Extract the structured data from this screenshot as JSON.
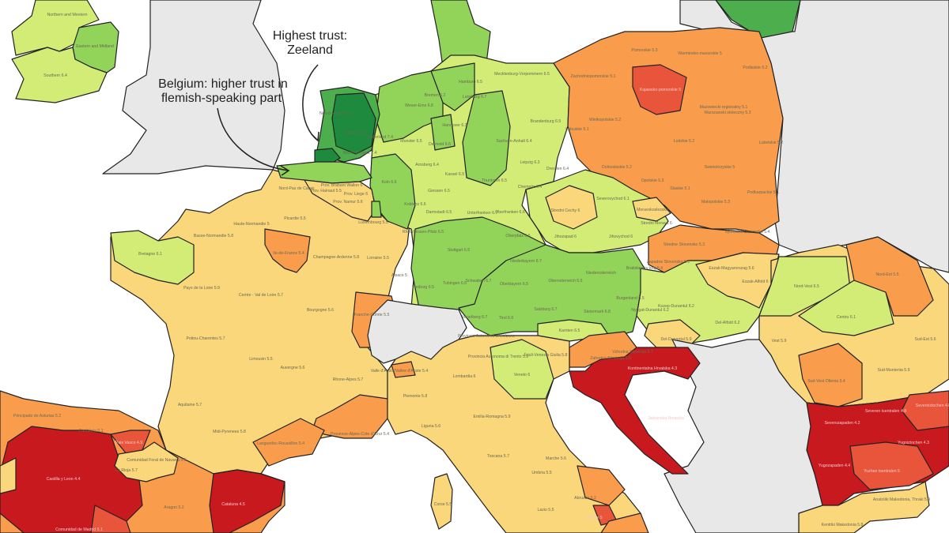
{
  "annotations": {
    "highest_trust_line1": "Highest trust:",
    "highest_trust_line2": "Zeeland",
    "belgium_line1": "Belgium: higher trust in",
    "belgium_line2": "flemish-speaking part"
  },
  "colors": {
    "sea": "#ffffff",
    "no_data": "#e8e8e8",
    "trust_highest": "#1e8a3e",
    "trust_very_high": "#4cae4c",
    "trust_high": "#92d35a",
    "trust_above_avg": "#d3ec76",
    "trust_mid": "#fad77a",
    "trust_low": "#f99d4c",
    "trust_very_low": "#e8553a",
    "trust_lowest": "#c8191e",
    "border": "#222222"
  },
  "labels": {
    "ie_nw": "Northern and Western",
    "ie_em": "Eastern and Midland",
    "ie_s": "Southern 6.4",
    "nl_nh": "Noord-Holland 7.1",
    "nl_ut": "Utrecht 7.3",
    "nl_ge": "Gelderland 7.4",
    "nl_nb": "Noord-Brabant 7.4",
    "de_mv": "Mecklenburg-Vorpommern 6.5",
    "de_hh": "Hamburg 6.5",
    "de_hb": "Bremen 6.2",
    "de_lu": "Luneburg 6.7",
    "de_we": "Weser-Ems 6.8",
    "de_ha": "Hannover 6.3",
    "de_br": "Brandenburg 6.5",
    "de_mu": "Munster 6.5",
    "de_de": "Detmold 6.6",
    "de_sa": "Sachsen-Anhalt 6.4",
    "de_le": "Leipzig 6.3",
    "de_dr": "Dresden 6.4",
    "de_ar": "Arnsberg 6.4",
    "de_ka": "Kassel 6.5",
    "de_ko": "Koln 6.6",
    "de_th": "Thuringen 6.5",
    "de_ch": "Chemnitz 6.4",
    "de_gi": "Giessen 6.5",
    "de_kb": "Koblenz 6.6",
    "de_da": "Darmstadt 6.5",
    "de_uf": "Unterfranken 6.7",
    "de_of": "Oberfranken 6.6",
    "de_op": "Oberpfalz 6.6",
    "de_rp": "Rheinhessen-Pfalz 6.5",
    "de_st": "Stuttgart 6.5",
    "de_nb": "Niederbayern 6.7",
    "de_tu": "Tubingen 6.5",
    "de_sw": "Schwaben 6.7",
    "de_ob": "Oberbayern 6.5",
    "de_fr": "Freiburg 6.5",
    "at_oo": "Oberosterreich 6.5",
    "at_no": "Niederosterreich",
    "at_sb": "Salzburg 6.7",
    "at_ti": "Tirol 6.6",
    "at_st": "Steiermark 6.8",
    "at_ka": "Karnten 6.5",
    "at_vb": "Vorarlberg 6.7",
    "at_bu": "Burgenland 6.5",
    "pl_po": "Pomorskie 5.3",
    "pl_wm": "Warminsko-mazurskie 5",
    "pl_zp": "Zachodniopomorskie 5.1",
    "pl_pd": "Podlaskie 5.2",
    "pl_kp": "Kujawsko-pomorskie 5",
    "pl_mr": "Mazowiecki regionalny 5.1",
    "pl_ws": "Warszawski stoleczny 5.3",
    "pl_wp": "Wielkopolskie 5.2",
    "pl_lb": "Lubuskie 5.1",
    "pl_ld": "Lodzkie 5.2",
    "pl_ll": "Lubelskie 5.2",
    "pl_ds": "Dolnoslaskie 5.2",
    "pl_sk": "Swietokrzyskie 5",
    "pl_op": "Opolskie 5.3",
    "pl_sl": "Slaskie 5.1",
    "pl_pk": "Podkarpackie 5.1",
    "pl_mp": "Malopolskie 5.3",
    "cz_sv": "Severovychod 6.1",
    "cz_sc": "Stredni Cechy 6",
    "cz_ms": "Moravskoslezsko",
    "cz_sm": "Stredni Morava 6",
    "cz_jz": "Jihozapad 6",
    "cz_jv": "Jihovychod 6",
    "sk_vs": "Vychodne Slovensko 5.4",
    "sk_ss": "Stredne Slovensko 5.3",
    "sk_zs": "Zapadne Slovensko 5.2",
    "sk_bk": "Bratislavsky kraj 5.4",
    "hu_em": "Eszak-Magyarorszag 5.6",
    "hu_ea": "Eszak-Alfold 6",
    "hu_kd": "Kozep-Dunantul 6.2",
    "hu_nd": "Nyugat-Dunantul 6.2",
    "hu_da": "Del-Alfold 6.2",
    "hu_dd": "Del-Dunantul 5.9",
    "ro_nv": "Nord-Vest 6.5",
    "ro_ne": "Nord-Est 5.5",
    "ro_ce": "Centru 6.1",
    "ro_ve": "Vest 5.9",
    "ro_se": "Sud-Est 5.6",
    "ro_sm": "Sud-Muntenia 5.9",
    "ro_so": "Sud-Vest Oltenia 5.4",
    "bg_sz": "Severozapaden 4.2",
    "bg_st": "Severen tsentralen 4.8",
    "bg_si": "Severoiztochen 4.8",
    "bg_yz": "Yugozapaden 4.4",
    "bg_yi": "Yugoiztochen 4.3",
    "bg_yt": "Yuzhen tsentralen 5",
    "gr_am": "Anatoliki Makedonia, Thraki 5.9",
    "gr_km": "Kentriki Makedonia 5.8",
    "hr_kh": "Kontinentalna Hrvatska 4.3",
    "hr_jh": "Jadranska Hrvatska",
    "si_vz": "Vzhodna Slovenija 5.7",
    "si_za": "Zahodna Slovenija 5.8",
    "it_bz": "Provincia Autonoma di Bolzano",
    "it_tn": "Provincia Autonoma di Trento 5.9",
    "it_fv": "Friuli-Venezia Giulia 5.8",
    "it_va": "Valle d'Aosta/Vallee d'Aoste 5.4",
    "it_lo": "Lombardia 6",
    "it_ve": "Veneto 6",
    "it_pi": "Piemonte 5.8",
    "it_er": "Emilia-Romagna 5.9",
    "it_li": "Liguria 5.6",
    "it_to": "Toscana 5.7",
    "it_ma": "Marche 5.6",
    "it_um": "Umbria 5.5",
    "fr_co": "Corse 5.5",
    "it_la": "Lazio 5.5",
    "it_ab": "Abruzzo 5.2",
    "it_mo": "Molise 5",
    "fr_np": "Nord-Pas de Calais",
    "fr_pi": "Picardie 5.5",
    "fr_hn": "Haute-Normandie 5",
    "fr_bn": "Basse-Normandie 5.8",
    "fr_br": "Bretagne 6.1",
    "fr_if": "Ile-de-France 5.4",
    "fr_ca": "Champagne-Ardenne 5.8",
    "fr_lo": "Lorraine 5.5",
    "fr_al": "Alsace 5",
    "fr_pl": "Pays de la Loire 5.9",
    "fr_ce": "Centre - Val de Loire 5.7",
    "fr_bo": "Bourgogne 5.6",
    "fr_fc": "Franche-Comte 5.5",
    "fr_pc": "Poitou-Charentes 5.7",
    "fr_li": "Limousin 5.5",
    "fr_au": "Auvergne 5.6",
    "fr_ra": "Rhone-Alpes 5.7",
    "fr_aq": "Aquitaine 5.7",
    "fr_mp": "Midi-Pyrenees 5.8",
    "fr_lr": "Languedoc-Roussillon 5.4",
    "fr_pa": "Provence-Alpes-Cote d'Azur 5.4",
    "be_bw": "Prov. Brabant Wallon 6",
    "be_ha": "Prov. Hainaut 5.5",
    "be_lg": "Prov. Liege 6",
    "be_na": "Prov. Namur 5.6",
    "lu_lu": "Luxembourg 5.5",
    "es_as": "Principado de Asturias 5.2",
    "es_cb": "Cantabria 5.1",
    "es_pv": "Pais Vasco 4.9",
    "es_na": "Comunidad Foral de Navarra 5.5",
    "es_ri": "La Rioja 5.7",
    "es_cl": "Castilla y Leon 4.4",
    "es_ar": "Aragon 5.2",
    "es_ct": "Cataluna 4.5",
    "es_md": "Comunidad de Madrid 5.1"
  }
}
